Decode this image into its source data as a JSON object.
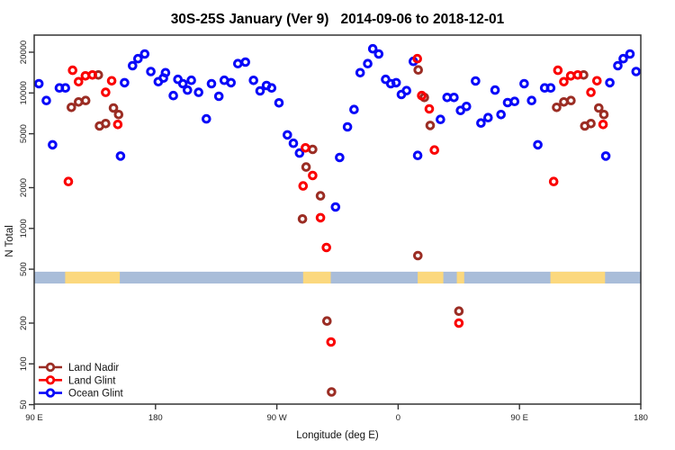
{
  "title": "30S-25S January (Ver 9)   2014-09-06 to 2018-12-01",
  "chart_data": {
    "type": "scatter",
    "title": "30S-25S January (Ver 9)   2014-09-06 to 2018-12-01",
    "title_parts": [
      "30S-25S January (Ver 9)",
      "2014-09-06 to 2018-12-01"
    ],
    "xlabel": "Longitude (deg E)",
    "ylabel": "N Total",
    "x_axis": {
      "display_range": [
        90,
        540
      ],
      "duplicate_lon_from": 90,
      "ticks": [
        {
          "pos": 90,
          "label": "90 E"
        },
        {
          "pos": 180,
          "label": "180"
        },
        {
          "pos": 270,
          "label": "90 W"
        },
        {
          "pos": 360,
          "label": "0"
        },
        {
          "pos": 450,
          "label": "90 E"
        },
        {
          "pos": 540,
          "label": "180"
        }
      ]
    },
    "y_axis": {
      "scale": "log",
      "range": [
        50,
        26500
      ],
      "ticks": [
        50,
        100,
        200,
        500,
        1000,
        2000,
        5000,
        10000,
        20000
      ]
    },
    "reference_band": {
      "n_range": [
        392,
        479
      ],
      "ocean_color": "#A9BDD9",
      "land_color": "#FBD87E",
      "land_segments_lon": [
        [
          113,
          153.5
        ],
        [
          -70.5,
          -50
        ],
        [
          14.5,
          33.5
        ],
        [
          43.5,
          49
        ]
      ]
    },
    "legend_position": "bottom-left",
    "series": [
      {
        "name": "Land Nadir",
        "color": "#9B2D24",
        "points": [
          [
            117.6,
            7830
          ],
          [
            122.9,
            8580
          ],
          [
            128.2,
            8800
          ],
          [
            137.6,
            13580
          ],
          [
            138.5,
            5700
          ],
          [
            143,
            5940
          ],
          [
            148.8,
            7750
          ],
          [
            152.6,
            6930
          ],
          [
            -71,
            1175
          ],
          [
            -68.3,
            2840
          ],
          [
            -63.4,
            3830
          ],
          [
            -57.6,
            1740
          ],
          [
            -52.8,
            207
          ],
          [
            -49.4,
            62
          ],
          [
            14.9,
            14800
          ],
          [
            19.4,
            9260
          ],
          [
            23.8,
            5760
          ],
          [
            14.6,
            630
          ],
          [
            45.1,
            245
          ]
        ]
      },
      {
        "name": "Land Glint",
        "color": "#FA0000",
        "points": [
          [
            115.4,
            2220
          ],
          [
            118.5,
            14700
          ],
          [
            122.9,
            12100
          ],
          [
            128,
            13370
          ],
          [
            133.2,
            13580
          ],
          [
            143,
            10100
          ],
          [
            147.5,
            12300
          ],
          [
            152,
            5850
          ],
          [
            -70.5,
            2060
          ],
          [
            -68.8,
            3930
          ],
          [
            -63.4,
            2460
          ],
          [
            -57.6,
            1200
          ],
          [
            -53.2,
            723
          ],
          [
            -49.8,
            145
          ],
          [
            14.2,
            17900
          ],
          [
            17.5,
            9560
          ],
          [
            23.1,
            7630
          ],
          [
            26.9,
            3790
          ],
          [
            45.1,
            200
          ]
        ]
      },
      {
        "name": "Ocean Glint",
        "color": "#0808F8",
        "points": [
          [
            93.5,
            11700
          ],
          [
            99,
            8800
          ],
          [
            103.6,
            4140
          ],
          [
            108.7,
            10900
          ],
          [
            113.2,
            10900
          ],
          [
            154,
            3420
          ],
          [
            157,
            11900
          ],
          [
            163,
            15900
          ],
          [
            167,
            17900
          ],
          [
            172,
            19400
          ],
          [
            176.5,
            14400
          ],
          [
            -177.9,
            12100
          ],
          [
            -174.1,
            12900
          ],
          [
            -172.6,
            14100
          ],
          [
            -166.8,
            9560
          ],
          [
            -163.4,
            12600
          ],
          [
            -159.7,
            11700
          ],
          [
            -156.3,
            10500
          ],
          [
            -153.4,
            12400
          ],
          [
            -148,
            10100
          ],
          [
            -142.3,
            6440
          ],
          [
            -138.5,
            11700
          ],
          [
            -133,
            9450
          ],
          [
            -129,
            12400
          ],
          [
            -124,
            11900
          ],
          [
            -118.9,
            16460
          ],
          [
            -113.3,
            16890
          ],
          [
            -107.3,
            12380
          ],
          [
            -102.4,
            10360
          ],
          [
            -97.7,
            11350
          ],
          [
            -93.9,
            10900
          ],
          [
            -88.4,
            8450
          ],
          [
            -82.2,
            4900
          ],
          [
            -77.7,
            4250
          ],
          [
            -73.2,
            3600
          ],
          [
            -46.5,
            1440
          ],
          [
            -43.4,
            3340
          ],
          [
            -37.6,
            5620
          ],
          [
            -32.7,
            7550
          ],
          [
            -28.2,
            14100
          ],
          [
            -22.6,
            16460
          ],
          [
            -18.8,
            21200
          ],
          [
            -14.4,
            19400
          ],
          [
            -9.3,
            12600
          ],
          [
            -5.5,
            11700
          ],
          [
            -1.5,
            11900
          ],
          [
            2.4,
            9740
          ],
          [
            6.2,
            10410
          ],
          [
            11.3,
            17100
          ],
          [
            14.5,
            3460
          ],
          [
            31.4,
            6380
          ],
          [
            36.3,
            9260
          ],
          [
            41.4,
            9260
          ],
          [
            46.3,
            7430
          ],
          [
            50.7,
            7950
          ],
          [
            57.4,
            12260
          ],
          [
            61.4,
            6000
          ],
          [
            66.7,
            6580
          ],
          [
            71.9,
            10500
          ],
          [
            76.3,
            6930
          ],
          [
            81.2,
            8490
          ],
          [
            86.4,
            8660
          ]
        ]
      }
    ]
  }
}
